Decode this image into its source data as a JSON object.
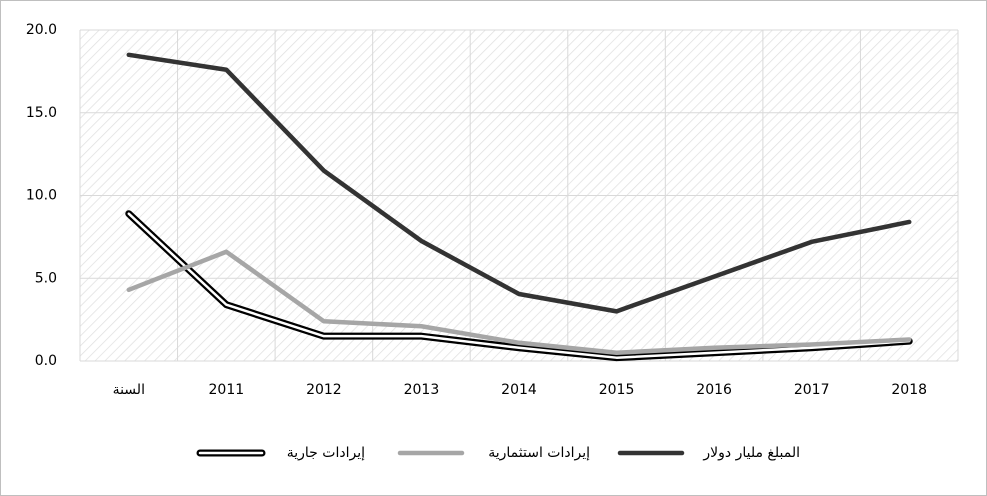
{
  "chart_data": {
    "type": "line",
    "categories": [
      "السنة",
      "2011",
      "2012",
      "2013",
      "2014",
      "2015",
      "2016",
      "2017",
      "2018"
    ],
    "series": [
      {
        "name": "إيرادات جارية",
        "color": "#000000",
        "values": [
          8.9,
          3.4,
          1.5,
          1.5,
          0.8,
          0.2,
          0.5,
          0.8,
          1.2
        ]
      },
      {
        "name": "إيرادات استثمارية",
        "color": "#a6a6a6",
        "values": [
          4.3,
          6.6,
          2.4,
          2.1,
          1.1,
          0.5,
          0.8,
          1.0,
          1.3
        ]
      },
      {
        "name": "المبلغ مليار دولار",
        "color": "#333333",
        "values": [
          18.5,
          17.6,
          11.5,
          7.25,
          4.05,
          3.0,
          5.1,
          7.2,
          8.4
        ]
      }
    ],
    "ylim": [
      0,
      20
    ],
    "yticks": [
      {
        "value": 0,
        "label": "0.0"
      },
      {
        "value": 5,
        "label": "5.0"
      },
      {
        "value": 10,
        "label": "10.0"
      },
      {
        "value": 15,
        "label": "15.0"
      },
      {
        "value": 20,
        "label": "20.0"
      }
    ],
    "grid": true
  }
}
